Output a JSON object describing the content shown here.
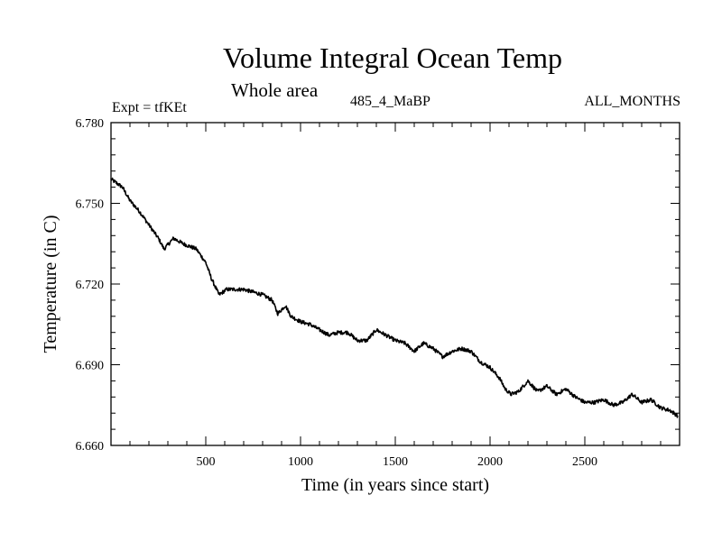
{
  "header": {
    "title": "Volume Integral Ocean Temp",
    "subtitle": "Whole area",
    "left_info": "Expt = tfKEt",
    "center_info": "485_4_MaBP",
    "right_info": "ALL_MONTHS"
  },
  "chart_data": {
    "type": "line",
    "title": "Volume Integral Ocean Temp",
    "subtitle": "Whole area",
    "xlabel": "Time (in years since start)",
    "ylabel": "Temperature (in C)",
    "xlim": [
      0,
      3000
    ],
    "ylim": [
      6.66,
      6.78
    ],
    "xticks": [
      500,
      1000,
      1500,
      2000,
      2500
    ],
    "xtick_labels": [
      "500",
      "1000",
      "1500",
      "2000",
      "2500"
    ],
    "yticks": [
      6.66,
      6.69,
      6.72,
      6.75,
      6.78
    ],
    "ytick_labels": [
      "6.660",
      "6.690",
      "6.720",
      "6.750",
      "6.780"
    ],
    "grid": false,
    "line_color": "#000000",
    "series": [
      {
        "x": [
          0,
          60,
          100,
          150,
          200,
          250,
          280,
          330,
          380,
          450,
          500,
          530,
          570,
          610,
          650,
          700,
          750,
          800,
          850,
          880,
          920,
          950,
          1000,
          1050,
          1100,
          1150,
          1200,
          1250,
          1300,
          1350,
          1400,
          1450,
          1500,
          1550,
          1600,
          1650,
          1700,
          1750,
          1800,
          1850,
          1900,
          1950,
          2000,
          2050,
          2080,
          2110,
          2150,
          2200,
          2250,
          2300,
          2350,
          2400,
          2450,
          2500,
          2550,
          2600,
          2650,
          2700,
          2750,
          2800,
          2850,
          2900,
          2950,
          2990
        ],
        "y": [
          6.759,
          6.756,
          6.751,
          6.747,
          6.742,
          6.737,
          6.733,
          6.737,
          6.735,
          6.733,
          6.728,
          6.722,
          6.716,
          6.718,
          6.718,
          6.718,
          6.717,
          6.716,
          6.714,
          6.709,
          6.712,
          6.708,
          6.706,
          6.705,
          6.703,
          6.701,
          6.702,
          6.702,
          6.699,
          6.699,
          6.703,
          6.701,
          6.699,
          6.698,
          6.695,
          6.698,
          6.696,
          6.693,
          6.695,
          6.696,
          6.695,
          6.691,
          6.689,
          6.685,
          6.681,
          6.679,
          6.68,
          6.684,
          6.68,
          6.682,
          6.679,
          6.681,
          6.678,
          6.676,
          6.676,
          6.677,
          6.675,
          6.676,
          6.679,
          6.676,
          6.677,
          6.674,
          6.673,
          6.671
        ]
      }
    ]
  }
}
